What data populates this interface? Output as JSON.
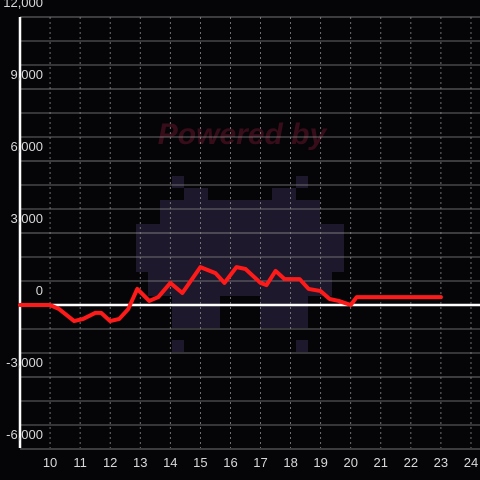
{
  "chart_data": {
    "type": "line",
    "watermark": "Powered by",
    "xlim": [
      9,
      24.3
    ],
    "xticks": [
      10,
      11,
      12,
      13,
      14,
      15,
      16,
      17,
      18,
      19,
      20,
      21,
      22,
      23,
      24
    ],
    "ylim": [
      -6000,
      12000
    ],
    "yticks": [
      {
        "value": -6000,
        "label": "-6,000"
      },
      {
        "value": -3000,
        "label": "-3,000"
      },
      0,
      {
        "value": 3000,
        "label": "3,000"
      },
      {
        "value": 6000,
        "label": "6,000"
      },
      {
        "value": 9000,
        "label": "9,000"
      },
      {
        "value": 12000,
        "label": "12,000"
      }
    ],
    "y_minor_ticks": [
      -5000,
      -4000,
      -2000,
      -1000,
      1000,
      2000,
      4000,
      5000,
      7000,
      8000,
      10000,
      11000
    ],
    "grid": true,
    "series": [
      {
        "color": "#ff1a1a",
        "x": [
          9.0,
          10.0,
          10.3,
          10.8,
          11.1,
          11.5,
          11.7,
          12.0,
          12.3,
          12.6,
          12.9,
          13.3,
          13.6,
          14.0,
          14.4,
          15.0,
          15.5,
          15.8,
          16.2,
          16.5,
          17.0,
          17.2,
          17.5,
          17.8,
          18.3,
          18.6,
          19.0,
          19.3,
          19.6,
          20.0,
          20.2,
          23.0
        ],
        "values": [
          0,
          0,
          -170,
          -670,
          -580,
          -330,
          -330,
          -670,
          -580,
          -170,
          670,
          170,
          330,
          920,
          500,
          1580,
          1330,
          920,
          1580,
          1500,
          920,
          830,
          1420,
          1080,
          1080,
          670,
          580,
          250,
          170,
          0,
          330,
          330
        ]
      }
    ]
  }
}
